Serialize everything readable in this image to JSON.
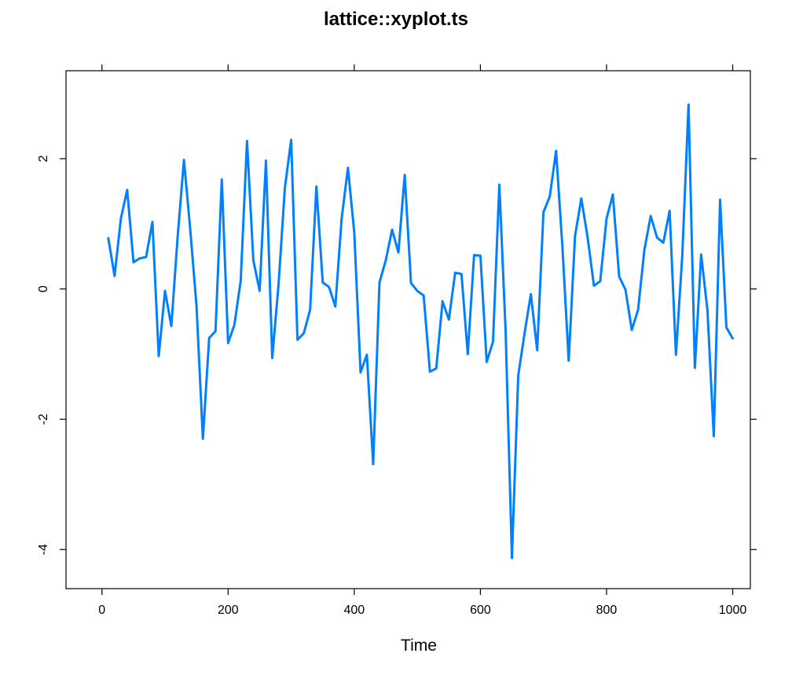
{
  "chart_data": {
    "type": "line",
    "title": "lattice::xyplot.ts",
    "xlabel": "Time",
    "ylabel": "",
    "xlim": [
      -57,
      1028
    ],
    "ylim": [
      -4.6,
      3.35
    ],
    "x_ticks": [
      0,
      200,
      400,
      600,
      800,
      1000
    ],
    "x_tick_labels": [
      "0",
      "200",
      "400",
      "600",
      "800",
      "1000"
    ],
    "y_ticks": [
      -4,
      -2,
      0,
      2
    ],
    "y_tick_labels": [
      "-4",
      "-2",
      "0",
      "2"
    ],
    "grid": false,
    "line_color": "#0080ff",
    "series": [
      {
        "x": [
          10,
          20,
          30,
          40,
          50,
          60,
          70,
          80,
          90,
          100,
          110,
          120,
          130,
          140,
          150,
          160,
          170,
          180,
          190,
          200,
          210,
          220,
          230,
          240,
          250,
          260,
          270,
          280,
          290,
          300,
          310,
          320,
          330,
          340,
          350,
          360,
          370,
          380,
          390,
          400,
          410,
          420,
          430,
          440,
          450,
          460,
          470,
          480,
          490,
          500,
          510,
          520,
          530,
          540,
          550,
          560,
          570,
          580,
          590,
          600,
          610,
          620,
          630,
          640,
          650,
          660,
          670,
          680,
          690,
          700,
          710,
          720,
          730,
          740,
          750,
          760,
          770,
          780,
          790,
          800,
          810,
          820,
          830,
          840,
          850,
          860,
          870,
          880,
          890,
          900,
          910,
          920,
          930,
          940,
          950,
          960,
          970,
          980,
          990,
          1000
        ],
        "values": [
          0.78,
          0.2,
          1.08,
          1.52,
          0.41,
          0.47,
          0.49,
          1.03,
          -1.03,
          -0.03,
          -0.57,
          0.8,
          1.98,
          0.91,
          -0.27,
          -2.3,
          -0.75,
          -0.65,
          1.68,
          -0.83,
          -0.55,
          0.13,
          2.27,
          0.44,
          -0.03,
          1.97,
          -1.06,
          0.07,
          1.55,
          2.29,
          -0.78,
          -0.68,
          -0.32,
          1.57,
          0.1,
          0.03,
          -0.27,
          1.08,
          1.86,
          0.87,
          -1.28,
          -1.01,
          -2.69,
          0.1,
          0.44,
          0.91,
          0.56,
          1.75,
          0.09,
          -0.03,
          -0.1,
          -1.27,
          -1.22,
          -0.19,
          -0.47,
          0.25,
          0.23,
          -1.0,
          0.52,
          0.51,
          -1.12,
          -0.81,
          1.6,
          -0.65,
          -4.13,
          -1.33,
          -0.68,
          -0.08,
          -0.94,
          1.18,
          1.42,
          2.12,
          0.65,
          -1.1,
          0.81,
          1.39,
          0.79,
          0.05,
          0.12,
          1.08,
          1.45,
          0.19,
          -0.01,
          -0.63,
          -0.32,
          0.6,
          1.12,
          0.79,
          0.71,
          1.2,
          -1.01,
          0.5,
          2.83,
          -1.21,
          0.53,
          -0.33,
          -2.26,
          1.37,
          -0.59,
          -0.76
        ]
      }
    ]
  }
}
